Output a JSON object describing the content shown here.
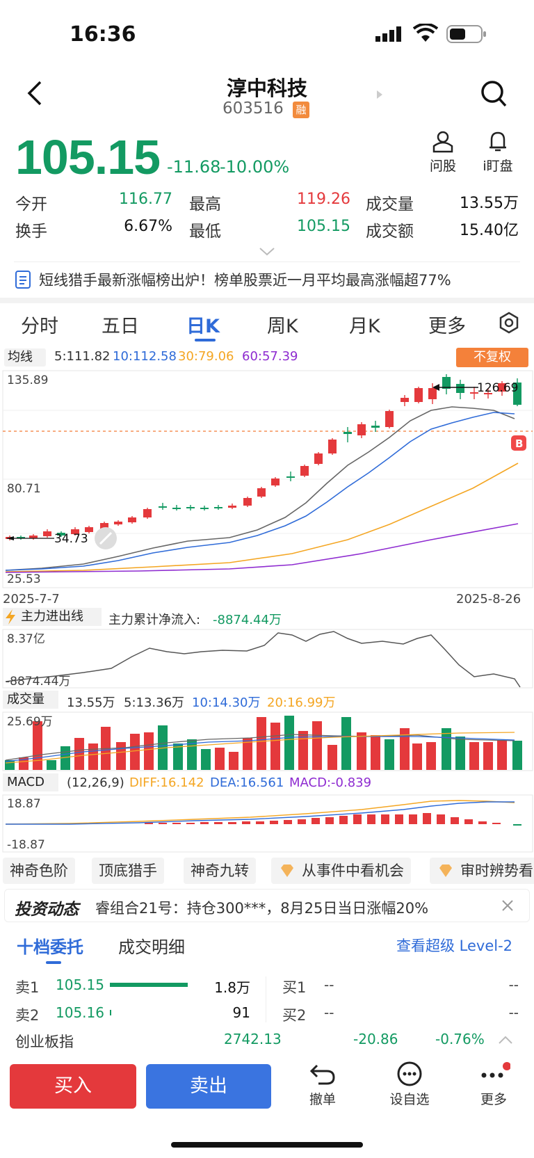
{
  "status": {
    "time": "16:36"
  },
  "header": {
    "name": "淳中科技",
    "code": "603516",
    "badge": "融"
  },
  "quote": {
    "price": "105.15",
    "change": "-11.68",
    "pct": "-10.00%"
  },
  "actions": {
    "ask": "问股",
    "watch": "i盯盘"
  },
  "stats": {
    "open_l": "今开",
    "open": "116.77",
    "high_l": "最高",
    "high": "119.26",
    "vol_l": "成交量",
    "vol": "13.55万",
    "turn_l": "换手",
    "turn": "6.67%",
    "low_l": "最低",
    "low": "105.15",
    "amt_l": "成交额",
    "amt": "15.40亿"
  },
  "notice": "短线猎手最新涨幅榜出炉！榜单股票近一月平均最高涨幅超77%",
  "tabs": [
    "分时",
    "五日",
    "日K",
    "周K",
    "月K",
    "更多"
  ],
  "ma": {
    "label": "均线",
    "ma5": "5:111.82",
    "ma10": "10:112.58",
    "ma30": "30:79.06",
    "ma60": "60:57.39",
    "adj": "不复权"
  },
  "kchart": {
    "ymax": "135.89",
    "ymid": "80.71",
    "ymin": "25.53",
    "peak": "126.69",
    "low": "34.73",
    "d1": "2025-7-7",
    "d2": "2025-8-26",
    "b": "B"
  },
  "flow": {
    "label": "主力进出线",
    "text": "主力累计净流入:",
    "value": "-8874.44万",
    "top": "8.37亿",
    "bottom": "-8874.44万"
  },
  "volume": {
    "label": "成交量",
    "cur": "13.55万",
    "ma5": "5:13.36万",
    "ma10": "10:14.30万",
    "ma20": "20:16.99万",
    "top": "25.69万"
  },
  "macd": {
    "label": "MACD",
    "params": "(12,26,9)",
    "diff": "DIFF:16.142",
    "dea": "DEA:16.561",
    "macd": "MACD:-0.839",
    "top": "18.87",
    "bottom": "-18.87"
  },
  "chips": [
    "神奇色阶",
    "顶底猎手",
    "神奇九转",
    "从事件中看机会",
    "审时辨势看"
  ],
  "news": {
    "title": "投资动态",
    "text": "睿组合21号：持仓300***，8月25日当日涨幅20%"
  },
  "book": {
    "tab1": "十档委托",
    "tab2": "成交明细",
    "level2": "查看超级 Level-2",
    "s1": "卖1",
    "s1p": "105.15",
    "s1v": "1.8万",
    "s2": "卖2",
    "s2p": "105.16",
    "s2v": "91",
    "b1": "买1",
    "b1p": "--",
    "b1v": "--",
    "b2": "买2",
    "b2p": "--",
    "b2v": "--"
  },
  "index": {
    "name": "创业板指",
    "value": "2742.13",
    "chg": "-20.86",
    "pct": "-0.76%"
  },
  "bottom": {
    "buy": "买入",
    "sell": "卖出",
    "cancel": "撤单",
    "fav": "设自选",
    "more": "更多"
  }
}
